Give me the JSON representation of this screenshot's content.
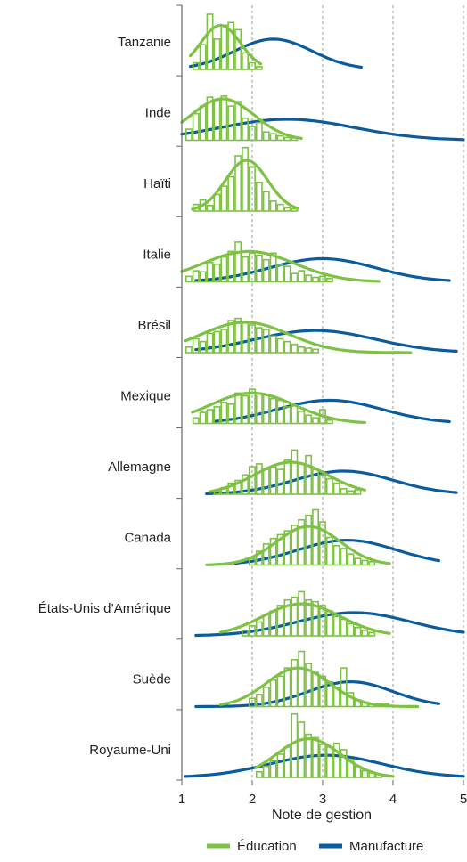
{
  "chart_data": {
    "type": "ridgeline-histogram",
    "xlabel": "Note de gestion",
    "ylabel": "",
    "xlim": [
      1,
      5
    ],
    "x_ticks": [
      "1",
      "2",
      "3",
      "4",
      "5"
    ],
    "grid": "vertical dashed at 2, 3, 4, 5",
    "legend_position": "bottom-center",
    "colors": {
      "education": "#7dc242",
      "manufacture": "#0b5c9e",
      "axis": "#666666",
      "grid": "#9a9a9a"
    },
    "legend": [
      {
        "key": "education",
        "label": "Éducation"
      },
      {
        "key": "manufacture",
        "label": "Manufacture"
      }
    ],
    "countries": [
      {
        "name": "Tanzanie",
        "education": {
          "mean": 1.55,
          "sd": 0.28,
          "range": [
            1.12,
            2.12
          ],
          "peak": 0.8
        },
        "manufacture": {
          "mean": 2.3,
          "sd": 0.55,
          "range": [
            1.12,
            3.55
          ],
          "peak": 0.55
        },
        "edu_bars": [
          {
            "x": 1.2,
            "h": 0.12
          },
          {
            "x": 1.3,
            "h": 0.45
          },
          {
            "x": 1.4,
            "h": 1.0
          },
          {
            "x": 1.5,
            "h": 0.55
          },
          {
            "x": 1.6,
            "h": 0.8
          },
          {
            "x": 1.7,
            "h": 0.85
          },
          {
            "x": 1.8,
            "h": 0.72
          },
          {
            "x": 1.9,
            "h": 0.3
          },
          {
            "x": 2.0,
            "h": 0.12
          },
          {
            "x": 2.1,
            "h": 0.05
          }
        ]
      },
      {
        "name": "Inde",
        "education": {
          "mean": 1.58,
          "sd": 0.45,
          "range": [
            1.0,
            2.7
          ],
          "peak": 0.75
        },
        "manufacture": {
          "mean": 2.5,
          "sd": 0.95,
          "range": [
            1.0,
            5.0
          ],
          "peak": 0.38
        },
        "edu_bars": [
          {
            "x": 1.1,
            "h": 0.2
          },
          {
            "x": 1.2,
            "h": 0.48
          },
          {
            "x": 1.3,
            "h": 0.62
          },
          {
            "x": 1.4,
            "h": 0.78
          },
          {
            "x": 1.5,
            "h": 0.73
          },
          {
            "x": 1.6,
            "h": 0.8
          },
          {
            "x": 1.7,
            "h": 0.62
          },
          {
            "x": 1.8,
            "h": 0.7
          },
          {
            "x": 1.9,
            "h": 0.4
          },
          {
            "x": 2.0,
            "h": 0.25
          },
          {
            "x": 2.1,
            "h": 0.32
          },
          {
            "x": 2.2,
            "h": 0.15
          },
          {
            "x": 2.3,
            "h": 0.12
          },
          {
            "x": 2.4,
            "h": 0.08
          },
          {
            "x": 2.5,
            "h": 0.05
          },
          {
            "x": 2.6,
            "h": 0.04
          }
        ]
      },
      {
        "name": "Haïti",
        "education": {
          "mean": 1.92,
          "sd": 0.3,
          "range": [
            1.15,
            2.65
          ],
          "peak": 0.92
        },
        "edu_bars": [
          {
            "x": 1.2,
            "h": 0.12
          },
          {
            "x": 1.3,
            "h": 0.2
          },
          {
            "x": 1.4,
            "h": 0.1
          },
          {
            "x": 1.5,
            "h": 0.3
          },
          {
            "x": 1.6,
            "h": 0.45
          },
          {
            "x": 1.7,
            "h": 0.62
          },
          {
            "x": 1.8,
            "h": 1.0
          },
          {
            "x": 1.9,
            "h": 1.15
          },
          {
            "x": 2.0,
            "h": 0.8
          },
          {
            "x": 2.1,
            "h": 0.52
          },
          {
            "x": 2.2,
            "h": 0.35
          },
          {
            "x": 2.3,
            "h": 0.18
          },
          {
            "x": 2.4,
            "h": 0.12
          },
          {
            "x": 2.5,
            "h": 0.06
          },
          {
            "x": 2.6,
            "h": 0.04
          }
        ]
      },
      {
        "name": "Italie",
        "education": {
          "mean": 1.95,
          "sd": 0.65,
          "range": [
            1.0,
            3.8
          ],
          "peak": 0.55
        },
        "manufacture": {
          "mean": 3.0,
          "sd": 0.75,
          "range": [
            1.2,
            4.8
          ],
          "peak": 0.42
        },
        "edu_bars": [
          {
            "x": 1.1,
            "h": 0.1
          },
          {
            "x": 1.2,
            "h": 0.2
          },
          {
            "x": 1.3,
            "h": 0.18
          },
          {
            "x": 1.4,
            "h": 0.35
          },
          {
            "x": 1.5,
            "h": 0.32
          },
          {
            "x": 1.6,
            "h": 0.45
          },
          {
            "x": 1.7,
            "h": 0.55
          },
          {
            "x": 1.8,
            "h": 0.72
          },
          {
            "x": 1.9,
            "h": 0.45
          },
          {
            "x": 2.0,
            "h": 0.52
          },
          {
            "x": 2.1,
            "h": 0.48
          },
          {
            "x": 2.2,
            "h": 0.4
          },
          {
            "x": 2.3,
            "h": 0.52
          },
          {
            "x": 2.4,
            "h": 0.3
          },
          {
            "x": 2.5,
            "h": 0.28
          },
          {
            "x": 2.6,
            "h": 0.15
          },
          {
            "x": 2.7,
            "h": 0.2
          },
          {
            "x": 2.8,
            "h": 0.12
          },
          {
            "x": 2.9,
            "h": 0.08
          },
          {
            "x": 3.0,
            "h": 0.1
          },
          {
            "x": 3.1,
            "h": 0.06
          }
        ]
      },
      {
        "name": "Brésil",
        "education": {
          "mean": 1.9,
          "sd": 0.62,
          "range": [
            1.05,
            4.25
          ],
          "peak": 0.55
        },
        "manufacture": {
          "mean": 2.9,
          "sd": 0.85,
          "range": [
            1.2,
            4.9
          ],
          "peak": 0.4
        },
        "edu_bars": [
          {
            "x": 1.1,
            "h": 0.1
          },
          {
            "x": 1.2,
            "h": 0.25
          },
          {
            "x": 1.3,
            "h": 0.2
          },
          {
            "x": 1.4,
            "h": 0.35
          },
          {
            "x": 1.5,
            "h": 0.38
          },
          {
            "x": 1.6,
            "h": 0.42
          },
          {
            "x": 1.7,
            "h": 0.58
          },
          {
            "x": 1.8,
            "h": 0.62
          },
          {
            "x": 1.9,
            "h": 0.55
          },
          {
            "x": 2.0,
            "h": 0.5
          },
          {
            "x": 2.1,
            "h": 0.45
          },
          {
            "x": 2.2,
            "h": 0.42
          },
          {
            "x": 2.3,
            "h": 0.3
          },
          {
            "x": 2.4,
            "h": 0.25
          },
          {
            "x": 2.5,
            "h": 0.2
          },
          {
            "x": 2.6,
            "h": 0.15
          },
          {
            "x": 2.7,
            "h": 0.1
          },
          {
            "x": 2.8,
            "h": 0.08
          },
          {
            "x": 2.9,
            "h": 0.06
          }
        ]
      },
      {
        "name": "Mexique",
        "education": {
          "mean": 2.0,
          "sd": 0.6,
          "range": [
            1.15,
            3.6
          ],
          "peak": 0.55
        },
        "manufacture": {
          "mean": 3.1,
          "sd": 0.75,
          "range": [
            1.45,
            4.8
          ],
          "peak": 0.42
        },
        "edu_bars": [
          {
            "x": 1.2,
            "h": 0.1
          },
          {
            "x": 1.3,
            "h": 0.2
          },
          {
            "x": 1.4,
            "h": 0.25
          },
          {
            "x": 1.5,
            "h": 0.3
          },
          {
            "x": 1.6,
            "h": 0.38
          },
          {
            "x": 1.7,
            "h": 0.35
          },
          {
            "x": 1.8,
            "h": 0.55
          },
          {
            "x": 1.9,
            "h": 0.5
          },
          {
            "x": 2.0,
            "h": 0.62
          },
          {
            "x": 2.1,
            "h": 0.55
          },
          {
            "x": 2.2,
            "h": 0.52
          },
          {
            "x": 2.3,
            "h": 0.45
          },
          {
            "x": 2.4,
            "h": 0.42
          },
          {
            "x": 2.5,
            "h": 0.3
          },
          {
            "x": 2.6,
            "h": 0.32
          },
          {
            "x": 2.7,
            "h": 0.22
          },
          {
            "x": 2.8,
            "h": 0.15
          },
          {
            "x": 2.9,
            "h": 0.1
          },
          {
            "x": 3.0,
            "h": 0.25
          },
          {
            "x": 3.1,
            "h": 0.06
          }
        ]
      },
      {
        "name": "Allemagne",
        "education": {
          "mean": 2.55,
          "sd": 0.52,
          "range": [
            1.4,
            3.6
          ],
          "peak": 0.58
        },
        "manufacture": {
          "mean": 3.3,
          "sd": 0.7,
          "range": [
            1.35,
            4.9
          ],
          "peak": 0.42
        },
        "edu_bars": [
          {
            "x": 1.5,
            "h": 0.05
          },
          {
            "x": 1.6,
            "h": 0.12
          },
          {
            "x": 1.7,
            "h": 0.2
          },
          {
            "x": 1.8,
            "h": 0.25
          },
          {
            "x": 1.9,
            "h": 0.35
          },
          {
            "x": 2.0,
            "h": 0.5
          },
          {
            "x": 2.1,
            "h": 0.55
          },
          {
            "x": 2.2,
            "h": 0.45
          },
          {
            "x": 2.3,
            "h": 0.5
          },
          {
            "x": 2.4,
            "h": 0.45
          },
          {
            "x": 2.5,
            "h": 0.62
          },
          {
            "x": 2.6,
            "h": 0.8
          },
          {
            "x": 2.7,
            "h": 0.55
          },
          {
            "x": 2.8,
            "h": 0.7
          },
          {
            "x": 2.9,
            "h": 0.45
          },
          {
            "x": 3.0,
            "h": 0.35
          },
          {
            "x": 3.1,
            "h": 0.28
          },
          {
            "x": 3.2,
            "h": 0.2
          },
          {
            "x": 3.3,
            "h": 0.1
          },
          {
            "x": 3.4,
            "h": 0.06
          },
          {
            "x": 3.5,
            "h": 0.08
          }
        ]
      },
      {
        "name": "Canada",
        "education": {
          "mean": 2.8,
          "sd": 0.45,
          "range": [
            1.35,
            3.95
          ],
          "peak": 0.7
        },
        "manufacture": {
          "mean": 3.35,
          "sd": 0.7,
          "range": [
            1.75,
            4.65
          ],
          "peak": 0.45
        },
        "edu_bars": [
          {
            "x": 2.0,
            "h": 0.12
          },
          {
            "x": 2.1,
            "h": 0.25
          },
          {
            "x": 2.2,
            "h": 0.38
          },
          {
            "x": 2.3,
            "h": 0.48
          },
          {
            "x": 2.4,
            "h": 0.55
          },
          {
            "x": 2.5,
            "h": 0.62
          },
          {
            "x": 2.6,
            "h": 0.72
          },
          {
            "x": 2.7,
            "h": 0.82
          },
          {
            "x": 2.8,
            "h": 0.9
          },
          {
            "x": 2.9,
            "h": 1.0
          },
          {
            "x": 3.0,
            "h": 0.78
          },
          {
            "x": 3.1,
            "h": 0.5
          },
          {
            "x": 3.2,
            "h": 0.35
          },
          {
            "x": 3.3,
            "h": 0.3
          },
          {
            "x": 3.4,
            "h": 0.2
          },
          {
            "x": 3.5,
            "h": 0.12
          },
          {
            "x": 3.6,
            "h": 0.08
          },
          {
            "x": 3.7,
            "h": 0.06
          }
        ]
      },
      {
        "name": "États-Unis d’Amérique",
        "education": {
          "mean": 2.7,
          "sd": 0.55,
          "range": [
            1.55,
            3.95
          ],
          "peak": 0.58
        },
        "manufacture": {
          "mean": 3.45,
          "sd": 0.8,
          "range": [
            1.2,
            5.0
          ],
          "peak": 0.42
        },
        "edu_bars": [
          {
            "x": 1.9,
            "h": 0.1
          },
          {
            "x": 2.0,
            "h": 0.18
          },
          {
            "x": 2.1,
            "h": 0.25
          },
          {
            "x": 2.2,
            "h": 0.38
          },
          {
            "x": 2.3,
            "h": 0.45
          },
          {
            "x": 2.4,
            "h": 0.55
          },
          {
            "x": 2.5,
            "h": 0.65
          },
          {
            "x": 2.6,
            "h": 0.7
          },
          {
            "x": 2.7,
            "h": 0.8
          },
          {
            "x": 2.8,
            "h": 0.65
          },
          {
            "x": 2.9,
            "h": 0.62
          },
          {
            "x": 3.0,
            "h": 0.55
          },
          {
            "x": 3.1,
            "h": 0.45
          },
          {
            "x": 3.2,
            "h": 0.35
          },
          {
            "x": 3.3,
            "h": 0.3
          },
          {
            "x": 3.4,
            "h": 0.22
          },
          {
            "x": 3.5,
            "h": 0.15
          },
          {
            "x": 3.6,
            "h": 0.1
          },
          {
            "x": 3.7,
            "h": 0.06
          }
        ]
      },
      {
        "name": "Suède",
        "education": {
          "mean": 2.65,
          "sd": 0.45,
          "range": [
            1.55,
            4.35
          ],
          "peak": 0.7
        },
        "manufacture": {
          "mean": 3.4,
          "sd": 0.6,
          "range": [
            1.2,
            4.65
          ],
          "peak": 0.45
        },
        "edu_bars": [
          {
            "x": 2.0,
            "h": 0.15
          },
          {
            "x": 2.1,
            "h": 0.22
          },
          {
            "x": 2.2,
            "h": 0.35
          },
          {
            "x": 2.3,
            "h": 0.48
          },
          {
            "x": 2.4,
            "h": 0.55
          },
          {
            "x": 2.5,
            "h": 0.7
          },
          {
            "x": 2.6,
            "h": 0.85
          },
          {
            "x": 2.7,
            "h": 1.0
          },
          {
            "x": 2.8,
            "h": 0.78
          },
          {
            "x": 2.9,
            "h": 0.62
          },
          {
            "x": 3.0,
            "h": 0.55
          },
          {
            "x": 3.1,
            "h": 0.45
          },
          {
            "x": 3.2,
            "h": 0.35
          },
          {
            "x": 3.3,
            "h": 0.7
          },
          {
            "x": 3.4,
            "h": 0.25
          },
          {
            "x": 3.5,
            "h": 0.12
          },
          {
            "x": 3.6,
            "h": 0.08
          },
          {
            "x": 3.7,
            "h": 0.05
          },
          {
            "x": 3.8,
            "h": 0.06
          },
          {
            "x": 3.9,
            "h": 0.05
          }
        ]
      },
      {
        "name": "Royaume-Uni",
        "education": {
          "mean": 2.8,
          "sd": 0.45,
          "range": [
            2.05,
            4.0
          ],
          "peak": 0.7
        },
        "manufacture": {
          "mean": 3.05,
          "sd": 0.8,
          "range": [
            1.05,
            5.0
          ],
          "peak": 0.4
        },
        "edu_bars": [
          {
            "x": 2.1,
            "h": 0.1
          },
          {
            "x": 2.2,
            "h": 0.2
          },
          {
            "x": 2.3,
            "h": 0.3
          },
          {
            "x": 2.4,
            "h": 0.42
          },
          {
            "x": 2.5,
            "h": 0.55
          },
          {
            "x": 2.6,
            "h": 1.15
          },
          {
            "x": 2.7,
            "h": 1.0
          },
          {
            "x": 2.8,
            "h": 0.78
          },
          {
            "x": 2.9,
            "h": 0.72
          },
          {
            "x": 3.0,
            "h": 0.6
          },
          {
            "x": 3.1,
            "h": 0.55
          },
          {
            "x": 3.2,
            "h": 0.62
          },
          {
            "x": 3.3,
            "h": 0.5
          },
          {
            "x": 3.4,
            "h": 0.32
          },
          {
            "x": 3.5,
            "h": 0.2
          },
          {
            "x": 3.6,
            "h": 0.12
          },
          {
            "x": 3.7,
            "h": 0.08
          },
          {
            "x": 3.8,
            "h": 0.06
          }
        ]
      }
    ]
  }
}
